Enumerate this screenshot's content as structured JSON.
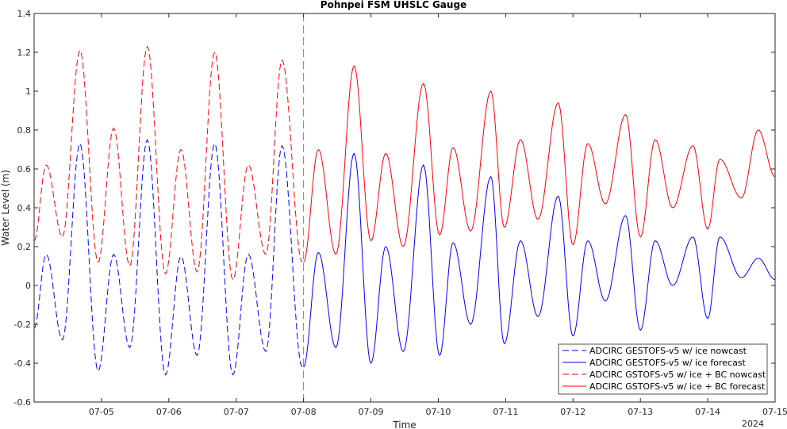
{
  "chart_data": {
    "type": "line",
    "title": "Pohnpei FSM UHSLC Gauge",
    "xlabel": "Time",
    "ylabel": "Water Level (m)",
    "year_label": "2024",
    "xlim": [
      4.0,
      15.0
    ],
    "ylim": [
      -0.6,
      1.4
    ],
    "x_unit": "days of July 2024",
    "xticks": [
      5,
      6,
      7,
      8,
      9,
      10,
      11,
      12,
      13,
      14,
      15
    ],
    "xtick_labels": [
      "07-05",
      "07-06",
      "07-07",
      "07-08",
      "07-09",
      "07-10",
      "07-11",
      "07-12",
      "07-13",
      "07-14",
      "07-15"
    ],
    "yticks": [
      -0.6,
      -0.4,
      -0.2,
      0,
      0.2,
      0.4,
      0.6,
      0.8,
      1.0,
      1.2,
      1.4
    ],
    "ytick_labels": [
      "-0.6",
      "-0.4",
      "-0.2",
      "0",
      "0.2",
      "0.4",
      "0.6",
      "0.8",
      "1",
      "1.2",
      "1.4"
    ],
    "vertical_line_x": 8.0,
    "grid": false,
    "legend_position": "bottom-right",
    "colors": {
      "blue": "#0000ff",
      "red": "#ff0000",
      "vline": "#808080"
    },
    "series": [
      {
        "name": "ADCIRC GESTOFS-v5 w/ ice nowcast",
        "color": "#0000ff",
        "style": "dashed",
        "extrema": [
          [
            4.0,
            -0.22
          ],
          [
            4.18,
            0.16
          ],
          [
            4.42,
            -0.28
          ],
          [
            4.68,
            0.73
          ],
          [
            4.95,
            -0.44
          ],
          [
            5.18,
            0.16
          ],
          [
            5.42,
            -0.32
          ],
          [
            5.68,
            0.75
          ],
          [
            5.95,
            -0.46
          ],
          [
            6.18,
            0.15
          ],
          [
            6.42,
            -0.36
          ],
          [
            6.68,
            0.73
          ],
          [
            6.95,
            -0.46
          ],
          [
            7.18,
            0.16
          ],
          [
            7.44,
            -0.34
          ],
          [
            7.68,
            0.72
          ],
          [
            7.98,
            -0.42
          ]
        ]
      },
      {
        "name": "ADCIRC GESTOFS-v5 w/ ice forecast",
        "color": "#0000ff",
        "style": "solid",
        "extrema": [
          [
            8.0,
            -0.42
          ],
          [
            8.22,
            0.17
          ],
          [
            8.48,
            -0.32
          ],
          [
            8.75,
            0.68
          ],
          [
            9.0,
            -0.4
          ],
          [
            9.22,
            0.2
          ],
          [
            9.48,
            -0.34
          ],
          [
            9.78,
            0.62
          ],
          [
            10.02,
            -0.36
          ],
          [
            10.22,
            0.22
          ],
          [
            10.48,
            -0.2
          ],
          [
            10.78,
            0.56
          ],
          [
            10.98,
            -0.3
          ],
          [
            11.22,
            0.23
          ],
          [
            11.48,
            -0.16
          ],
          [
            11.78,
            0.46
          ],
          [
            12.0,
            -0.26
          ],
          [
            12.22,
            0.23
          ],
          [
            12.48,
            -0.08
          ],
          [
            12.78,
            0.36
          ],
          [
            13.0,
            -0.23
          ],
          [
            13.22,
            0.23
          ],
          [
            13.48,
            0.0
          ],
          [
            13.78,
            0.25
          ],
          [
            14.0,
            -0.17
          ],
          [
            14.18,
            0.25
          ],
          [
            14.5,
            0.04
          ],
          [
            14.75,
            0.14
          ],
          [
            15.0,
            0.03
          ]
        ]
      },
      {
        "name": "ADCIRC GSTOFS-v5 w/ ice + BC nowcast",
        "color": "#ff0000",
        "style": "dashed",
        "extrema": [
          [
            4.0,
            0.23
          ],
          [
            4.18,
            0.62
          ],
          [
            4.42,
            0.25
          ],
          [
            4.68,
            1.21
          ],
          [
            4.95,
            0.12
          ],
          [
            5.18,
            0.81
          ],
          [
            5.42,
            0.1
          ],
          [
            5.68,
            1.23
          ],
          [
            5.95,
            0.06
          ],
          [
            6.18,
            0.7
          ],
          [
            6.42,
            0.07
          ],
          [
            6.68,
            1.2
          ],
          [
            6.95,
            0.03
          ],
          [
            7.18,
            0.62
          ],
          [
            7.44,
            0.16
          ],
          [
            7.68,
            1.16
          ],
          [
            7.98,
            0.12
          ]
        ]
      },
      {
        "name": "ADCIRC GSTOFS-v5 w/ ice + BC forecast",
        "color": "#ff0000",
        "style": "solid",
        "extrema": [
          [
            8.0,
            0.12
          ],
          [
            8.22,
            0.7
          ],
          [
            8.48,
            0.16
          ],
          [
            8.75,
            1.13
          ],
          [
            9.0,
            0.23
          ],
          [
            9.22,
            0.68
          ],
          [
            9.48,
            0.2
          ],
          [
            9.78,
            1.04
          ],
          [
            10.02,
            0.26
          ],
          [
            10.22,
            0.71
          ],
          [
            10.48,
            0.28
          ],
          [
            10.78,
            1.0
          ],
          [
            10.98,
            0.3
          ],
          [
            11.22,
            0.75
          ],
          [
            11.48,
            0.34
          ],
          [
            11.78,
            0.94
          ],
          [
            12.0,
            0.21
          ],
          [
            12.22,
            0.73
          ],
          [
            12.48,
            0.42
          ],
          [
            12.78,
            0.88
          ],
          [
            13.0,
            0.25
          ],
          [
            13.22,
            0.75
          ],
          [
            13.48,
            0.4
          ],
          [
            13.78,
            0.72
          ],
          [
            14.0,
            0.29
          ],
          [
            14.18,
            0.65
          ],
          [
            14.5,
            0.45
          ],
          [
            14.75,
            0.8
          ],
          [
            15.0,
            0.56
          ]
        ]
      }
    ]
  }
}
